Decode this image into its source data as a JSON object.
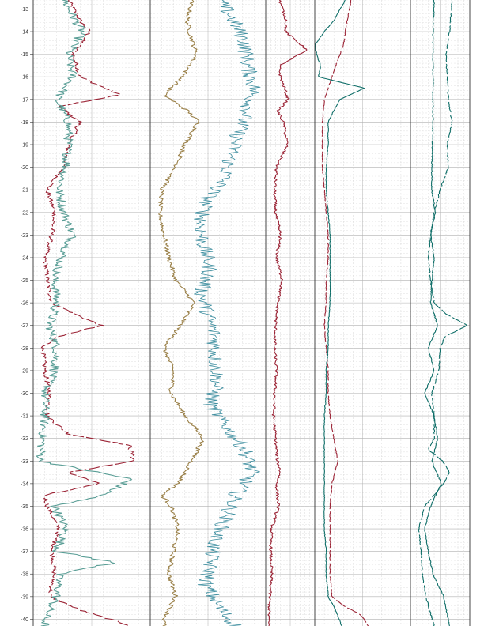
{
  "colors": {
    "background": "#ffffff",
    "track_border": "#333333",
    "grid_major": "#b0b0b0",
    "grid_minor": "#d8d8d8",
    "red": "#9b2335",
    "teal": "#5a9e96",
    "olive": "#9a8048",
    "cyan": "#3f8fa0",
    "dark_teal": "#0f6e68"
  },
  "chart_data": {
    "type": "line",
    "title": "",
    "ylabel": "",
    "y_axis": {
      "direction": "down",
      "ylim": [
        -12.6,
        -40.3
      ],
      "tick_labels": [
        "-13",
        "-14",
        "-15",
        "-16",
        "-17",
        "-18",
        "-19",
        "-20",
        "-21",
        "-22",
        "-23",
        "-24",
        "-25",
        "-26",
        "-27",
        "-28",
        "-29",
        "-30",
        "-31",
        "-32",
        "-33",
        "-34",
        "-35",
        "-36",
        "-37",
        "-38",
        "-39",
        "-40"
      ]
    },
    "grid": true,
    "tracks": [
      {
        "series": [
          {
            "color_key": "red",
            "style": "dashed",
            "noise": 0.02,
            "xlim": [
              0,
              1
            ],
            "depth": [
              -12.6,
              -13.5,
              -14.0,
              -15.0,
              -16.0,
              -16.8,
              -17.3,
              -18.0,
              -19.0,
              -20.0,
              -21.0,
              -22.0,
              -23.0,
              -24.0,
              -25.0,
              -26.0,
              -26.6,
              -27.0,
              -27.5,
              -28.0,
              -29.0,
              -30.0,
              -31.0,
              -31.8,
              -32.3,
              -33.0,
              -33.5,
              -34.0,
              -34.5,
              -35.0,
              -36.0,
              -37.0,
              -38.0,
              -39.0,
              -39.6,
              -40.3
            ],
            "value": [
              0.3,
              0.4,
              0.48,
              0.34,
              0.4,
              0.74,
              0.22,
              0.4,
              0.3,
              0.26,
              0.12,
              0.18,
              0.16,
              0.1,
              0.12,
              0.16,
              0.4,
              0.58,
              0.2,
              0.08,
              0.1,
              0.14,
              0.12,
              0.3,
              0.82,
              0.86,
              0.3,
              0.56,
              0.1,
              0.12,
              0.22,
              0.16,
              0.18,
              0.14,
              0.4,
              0.84
            ]
          },
          {
            "color_key": "teal",
            "style": "solid",
            "noise": 0.04,
            "xlim": [
              0,
              1
            ],
            "depth": [
              -12.6,
              -13.5,
              -14.0,
              -15.0,
              -16.0,
              -17.0,
              -18.0,
              -19.0,
              -20.0,
              -21.0,
              -22.0,
              -23.0,
              -24.0,
              -25.0,
              -26.0,
              -27.0,
              -28.0,
              -29.0,
              -30.0,
              -31.0,
              -32.0,
              -33.0,
              -33.8,
              -34.5,
              -35.0,
              -36.0,
              -37.0,
              -37.5,
              -38.0,
              -39.0,
              -40.0
            ],
            "value": [
              0.26,
              0.36,
              0.42,
              0.3,
              0.34,
              0.2,
              0.3,
              0.3,
              0.28,
              0.22,
              0.26,
              0.34,
              0.24,
              0.18,
              0.2,
              0.14,
              0.2,
              0.18,
              0.1,
              0.1,
              0.08,
              0.06,
              0.84,
              0.6,
              0.18,
              0.28,
              0.2,
              0.7,
              0.22,
              0.2,
              0.1
            ]
          }
        ]
      },
      {
        "series": [
          {
            "color_key": "olive",
            "style": "solid",
            "noise": 0.02,
            "xlim": [
              0,
              1
            ],
            "depth": [
              -12.6,
              -13.5,
              -14.0,
              -15.0,
              -16.0,
              -16.8,
              -17.5,
              -18.0,
              -19.0,
              -20.0,
              -21.0,
              -22.0,
              -23.0,
              -24.0,
              -25.0,
              -26.0,
              -27.0,
              -28.0,
              -29.0,
              -30.0,
              -31.0,
              -32.0,
              -33.0,
              -34.0,
              -34.5,
              -35.0,
              -36.0,
              -37.0,
              -38.0,
              -39.0,
              -40.0
            ],
            "value": [
              0.36,
              0.32,
              0.34,
              0.4,
              0.28,
              0.12,
              0.32,
              0.42,
              0.3,
              0.22,
              0.1,
              0.08,
              0.12,
              0.16,
              0.22,
              0.38,
              0.26,
              0.12,
              0.2,
              0.18,
              0.3,
              0.46,
              0.36,
              0.24,
              0.1,
              0.18,
              0.24,
              0.2,
              0.16,
              0.22,
              0.12
            ]
          },
          {
            "color_key": "cyan",
            "style": "solid",
            "noise": 0.07,
            "xlim": [
              0,
              1
            ],
            "depth": [
              -12.6,
              -13.5,
              -14.5,
              -15.5,
              -16.5,
              -17.5,
              -18.5,
              -19.5,
              -20.5,
              -21.5,
              -22.5,
              -23.5,
              -24.5,
              -25.5,
              -26.5,
              -27.5,
              -28.5,
              -29.5,
              -30.5,
              -31.5,
              -32.5,
              -33.5,
              -34.5,
              -35.5,
              -36.5,
              -37.5,
              -38.5,
              -39.5,
              -40.3
            ],
            "value": [
              0.6,
              0.72,
              0.82,
              0.84,
              0.9,
              0.84,
              0.76,
              0.7,
              0.64,
              0.48,
              0.44,
              0.46,
              0.52,
              0.44,
              0.5,
              0.56,
              0.56,
              0.58,
              0.52,
              0.66,
              0.82,
              0.88,
              0.74,
              0.66,
              0.56,
              0.52,
              0.48,
              0.6,
              0.74
            ]
          }
        ]
      },
      {
        "series": [
          {
            "color_key": "red",
            "style": "solid",
            "noise": 0.03,
            "xlim": [
              0,
              1
            ],
            "depth": [
              -12.6,
              -13.5,
              -14.0,
              -14.8,
              -15.5,
              -16.0,
              -17.0,
              -17.5,
              -18.0,
              -19.0,
              -20.0,
              -21.0,
              -22.0,
              -23.0,
              -24.0,
              -25.0,
              -26.0,
              -27.0,
              -28.0,
              -29.0,
              -30.0,
              -31.0,
              -32.0,
              -33.0,
              -33.5,
              -34.0,
              -35.0,
              -36.0,
              -37.0,
              -38.0,
              -39.0,
              -40.0
            ],
            "value": [
              0.28,
              0.42,
              0.4,
              0.84,
              0.28,
              0.3,
              0.46,
              0.24,
              0.36,
              0.44,
              0.22,
              0.18,
              0.2,
              0.3,
              0.22,
              0.34,
              0.24,
              0.2,
              0.18,
              0.22,
              0.18,
              0.16,
              0.2,
              0.24,
              0.3,
              0.22,
              0.26,
              0.12,
              0.1,
              0.12,
              0.08,
              0.06
            ]
          }
        ]
      },
      {
        "series": [
          {
            "color_key": "red",
            "style": "dashed",
            "noise": 0.004,
            "xlim": [
              0,
              1
            ],
            "depth": [
              -12.6,
              -13.5,
              -14.0,
              -14.6,
              -15.5,
              -16.5,
              -17.0,
              -18.0,
              -19.0,
              -20.0,
              -21.0,
              -22.0,
              -23.0,
              -24.0,
              -25.0,
              -26.0,
              -27.0,
              -28.0,
              -29.0,
              -30.0,
              -31.0,
              -32.0,
              -33.0,
              -34.0,
              -35.0,
              -36.0,
              -37.0,
              -38.0,
              -39.0,
              -39.4,
              -39.8,
              -40.3
            ],
            "value": [
              0.38,
              0.34,
              0.32,
              0.3,
              0.22,
              0.14,
              0.1,
              0.08,
              0.08,
              0.08,
              0.1,
              0.12,
              0.14,
              0.14,
              0.12,
              0.12,
              0.1,
              0.12,
              0.14,
              0.14,
              0.16,
              0.2,
              0.24,
              0.18,
              0.16,
              0.16,
              0.16,
              0.16,
              0.18,
              0.3,
              0.48,
              0.56
            ]
          },
          {
            "color_key": "dark_teal",
            "style": "solid",
            "noise": 0.004,
            "xlim": [
              0,
              1
            ],
            "depth": [
              -12.6,
              -13.5,
              -14.0,
              -14.6,
              -15.0,
              -15.5,
              -16.0,
              -16.5,
              -17.0,
              -18.0,
              -19.0,
              -20.0,
              -21.0,
              -22.0,
              -23.0,
              -24.0,
              -25.0,
              -26.0,
              -27.0,
              -28.0,
              -29.0,
              -30.0,
              -31.0,
              -32.0,
              -33.0,
              -34.0,
              -35.0,
              -36.0,
              -37.0,
              -38.0,
              -39.0,
              -39.6,
              -40.3
            ],
            "value": [
              0.32,
              0.2,
              0.1,
              0.0,
              0.02,
              0.06,
              0.04,
              0.52,
              0.26,
              0.14,
              0.14,
              0.12,
              0.12,
              0.14,
              0.16,
              0.16,
              0.16,
              0.16,
              0.14,
              0.14,
              0.12,
              0.12,
              0.1,
              0.1,
              0.1,
              0.1,
              0.1,
              0.1,
              0.12,
              0.12,
              0.14,
              0.22,
              0.28
            ]
          }
        ]
      },
      {
        "series": [
          {
            "color_key": "dark_teal",
            "style": "solid",
            "noise": 0.008,
            "xlim": [
              0,
              1
            ],
            "depth": [
              -12.6,
              -14.0,
              -16.0,
              -18.0,
              -20.0,
              -21.0,
              -22.0,
              -23.0,
              -24.0,
              -25.0,
              -26.0,
              -27.0,
              -28.0,
              -29.0,
              -30.0,
              -31.0,
              -32.0,
              -33.0,
              -34.0,
              -35.0,
              -36.0,
              -37.0,
              -38.0,
              -39.0,
              -40.3
            ],
            "value": [
              0.4,
              0.38,
              0.38,
              0.38,
              0.36,
              0.36,
              0.42,
              0.34,
              0.4,
              0.36,
              0.34,
              0.46,
              0.3,
              0.4,
              0.24,
              0.4,
              0.46,
              0.36,
              0.52,
              0.34,
              0.24,
              0.3,
              0.38,
              0.56,
              0.66
            ]
          },
          {
            "color_key": "dark_teal",
            "style": "dashed",
            "noise": 0.008,
            "xlim": [
              0,
              1
            ],
            "depth": [
              -12.6,
              -14.0,
              -15.0,
              -16.0,
              -17.0,
              -18.0,
              -19.0,
              -20.0,
              -21.0,
              -22.0,
              -23.0,
              -24.0,
              -25.0,
              -26.0,
              -26.5,
              -27.0,
              -27.5,
              -28.0,
              -29.0,
              -30.0,
              -31.0,
              -32.0,
              -32.5,
              -33.0,
              -33.5,
              -34.0,
              -35.0,
              -36.0,
              -37.0,
              -38.0,
              -39.0,
              -40.3
            ],
            "value": [
              0.7,
              0.66,
              0.6,
              0.62,
              0.64,
              0.7,
              0.62,
              0.64,
              0.5,
              0.4,
              0.34,
              0.3,
              0.34,
              0.4,
              0.6,
              0.96,
              0.58,
              0.5,
              0.48,
              0.36,
              0.4,
              0.4,
              0.3,
              0.54,
              0.66,
              0.56,
              0.24,
              0.14,
              0.18,
              0.2,
              0.26,
              0.4
            ]
          }
        ]
      }
    ]
  }
}
